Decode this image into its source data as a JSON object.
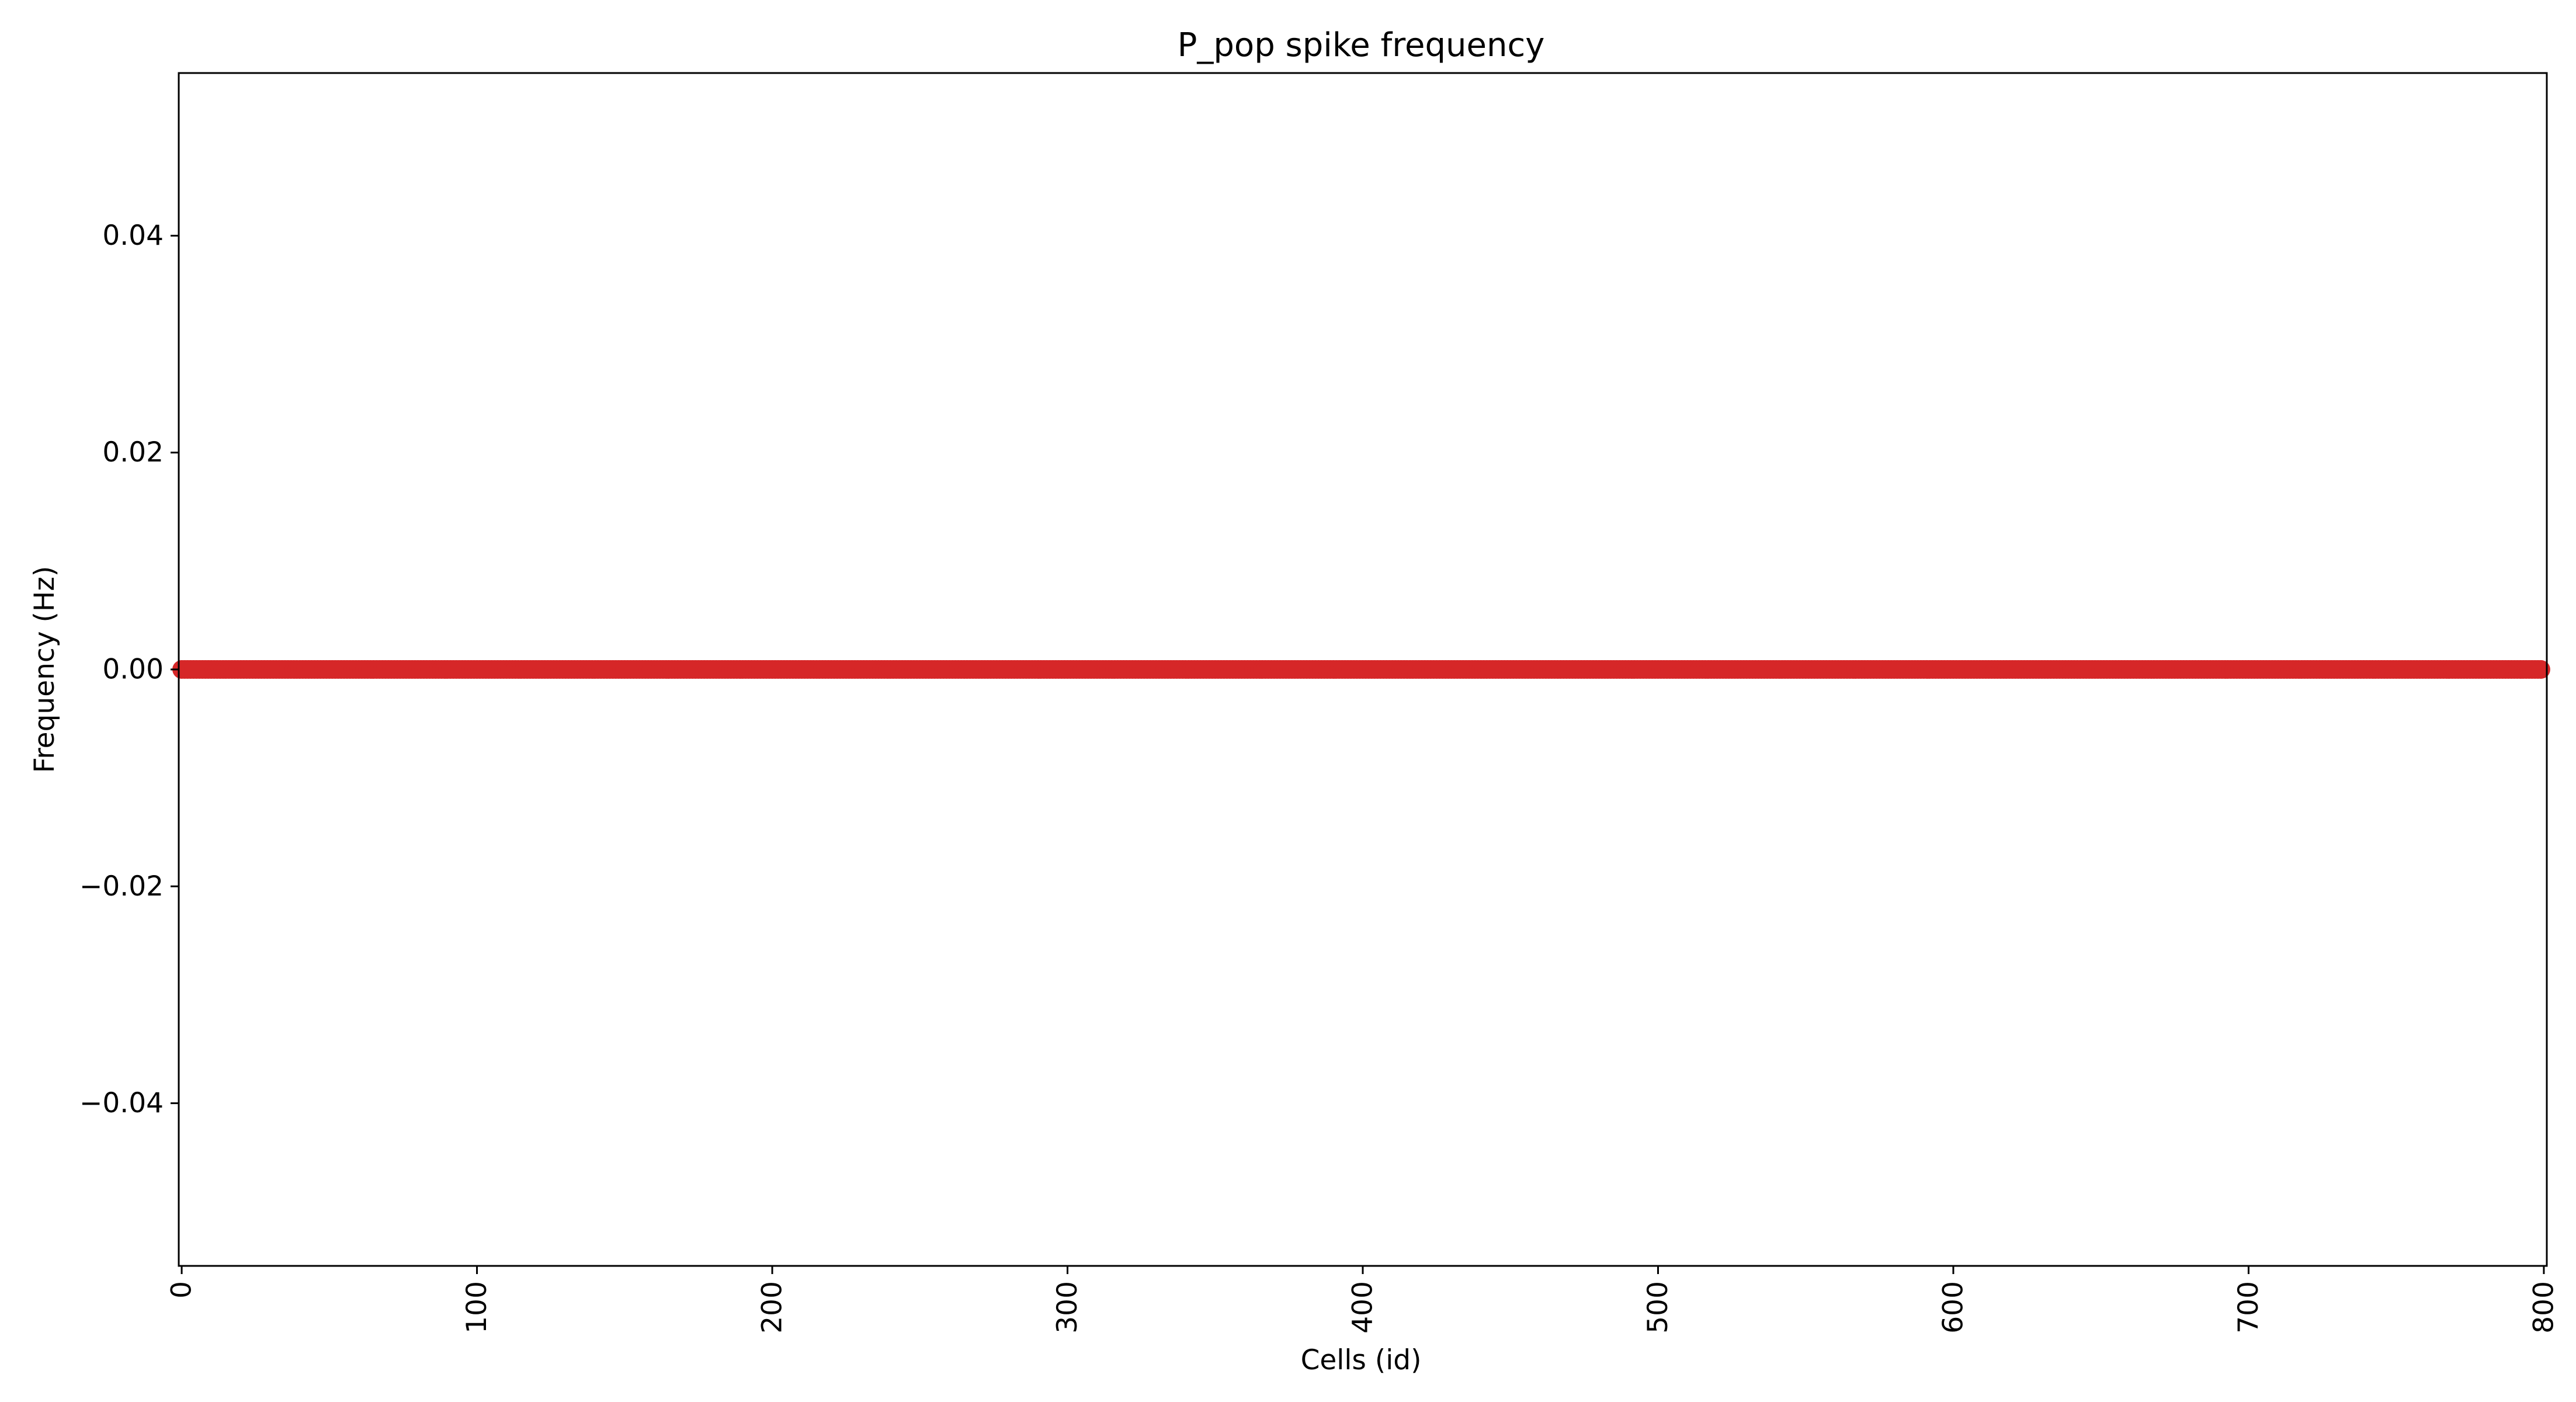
{
  "chart_data": {
    "type": "scatter",
    "title": "P_pop spike frequency",
    "xlabel": "Cells (id)",
    "ylabel": "Frequency (Hz)",
    "xlim": [
      -1,
      801
    ],
    "ylim": [
      -0.055,
      0.055
    ],
    "x_ticks": [
      0,
      100,
      200,
      300,
      400,
      500,
      600,
      700,
      800
    ],
    "x_tick_labels": [
      "0",
      "100",
      "200",
      "300",
      "400",
      "500",
      "600",
      "700",
      "800"
    ],
    "y_ticks": [
      0.04,
      0.02,
      0.0,
      -0.02,
      -0.04
    ],
    "y_tick_labels": [
      "0.04",
      "0.02",
      "0.00",
      "−0.02",
      "−0.04"
    ],
    "grid": false,
    "series": [
      {
        "color": "#d62728",
        "x_start": 0,
        "x_end": 799,
        "x_step": 1,
        "y_constant": 0.0
      }
    ]
  }
}
